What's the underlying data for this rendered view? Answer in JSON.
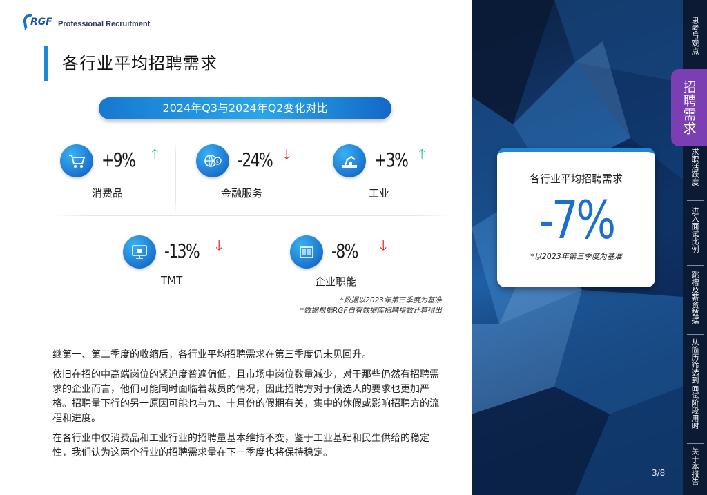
{
  "brand": {
    "logo_mark": "RGF",
    "logo_text": "Professional Recruitment"
  },
  "page_title": "各行业平均招聘需求",
  "comparison_label": "2024年Q3与2024年Q2变化对比",
  "stats": [
    {
      "label": "消费品",
      "value": "+9%",
      "direction": "up",
      "icon": "shopping-cart-icon"
    },
    {
      "label": "金融服务",
      "value": "-24%",
      "direction": "down",
      "icon": "finance-globe-icon"
    },
    {
      "label": "工业",
      "value": "+3%",
      "direction": "up",
      "icon": "industrial-robot-icon"
    },
    {
      "label": "TMT",
      "value": "-13%",
      "direction": "down",
      "icon": "tech-chip-icon"
    },
    {
      "label": "企业职能",
      "value": "-8%",
      "direction": "down",
      "icon": "office-building-icon"
    }
  ],
  "arrows": {
    "up": "🡑",
    "down": "🡓"
  },
  "notes": [
    "*数据以2023年第三季度为基准",
    "*数据根据RGF自有数据库招聘指数计算得出"
  ],
  "paragraphs": [
    "继第一、第二季度的收缩后，各行业平均招聘需求在第三季度仍未见回升。",
    "依旧在招的中高端岗位的紧迫度普遍偏低，且市场中岗位数量减少，对于那些仍然有招聘需求的企业而言，他们可能同时面临着裁员的情况，因此招聘方对于候选人的要求也更加严格。招聘量下行的另一原因可能也与九、十月份的假期有关，集中的休假或影响招聘方的流程和进度。",
    "在各行业中仅消费品和工业行业的招聘量基本维持不变，鉴于工业基础和民生供给的稳定性，我们认为这两个行业的招聘需求量在下一季度也将保持稳定。"
  ],
  "summary_card": {
    "title": "各行业平均招聘需求",
    "value": "-7%",
    "note": "*以2023年第三季度为基准"
  },
  "page_number": "3/8",
  "sidenav": {
    "items": [
      "思考与观点",
      "招聘需求",
      "求职活跃度",
      "进入面试比例",
      "跳槽及薪资数据",
      "从简历筛选到面试阶段用时",
      "关于本报告"
    ],
    "active_index": 1
  },
  "colors": {
    "accent": "#1f86d6",
    "active_nav": "#7b3fb3",
    "up": "#38c79a",
    "down": "#e02020"
  }
}
